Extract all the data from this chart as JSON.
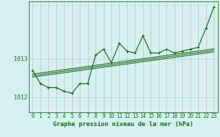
{
  "title": "Graphe pression niveau de la mer (hPa)",
  "bg_color": "#d4f0f0",
  "line_color": "#1a6b1a",
  "hgrid_color": "#b8d0d0",
  "vgrid_color": "#c8b8b8",
  "yticks": [
    1012,
    1013
  ],
  "ylim": [
    1011.6,
    1014.5
  ],
  "xlim": [
    -0.5,
    23.5
  ],
  "series1": [
    1012.7,
    1012.35,
    1012.25,
    1012.25,
    1012.15,
    1012.1,
    1012.35,
    1012.35,
    1013.1,
    1013.25,
    1012.9,
    1013.4,
    1013.2,
    1013.15,
    1013.6,
    1013.15,
    1013.15,
    1013.25,
    1013.15,
    1013.2,
    1013.25,
    1013.3,
    1013.8,
    1014.35
  ],
  "trend1_x": [
    0,
    23
  ],
  "trend1_y": [
    1012.52,
    1013.18
  ],
  "trend2_x": [
    0,
    23
  ],
  "trend2_y": [
    1012.56,
    1013.22
  ],
  "trend3_x": [
    0,
    23
  ],
  "trend3_y": [
    1012.6,
    1013.26
  ],
  "xlabel_fontsize": 5.5,
  "ylabel_fontsize": 6,
  "title_fontsize": 6.5
}
